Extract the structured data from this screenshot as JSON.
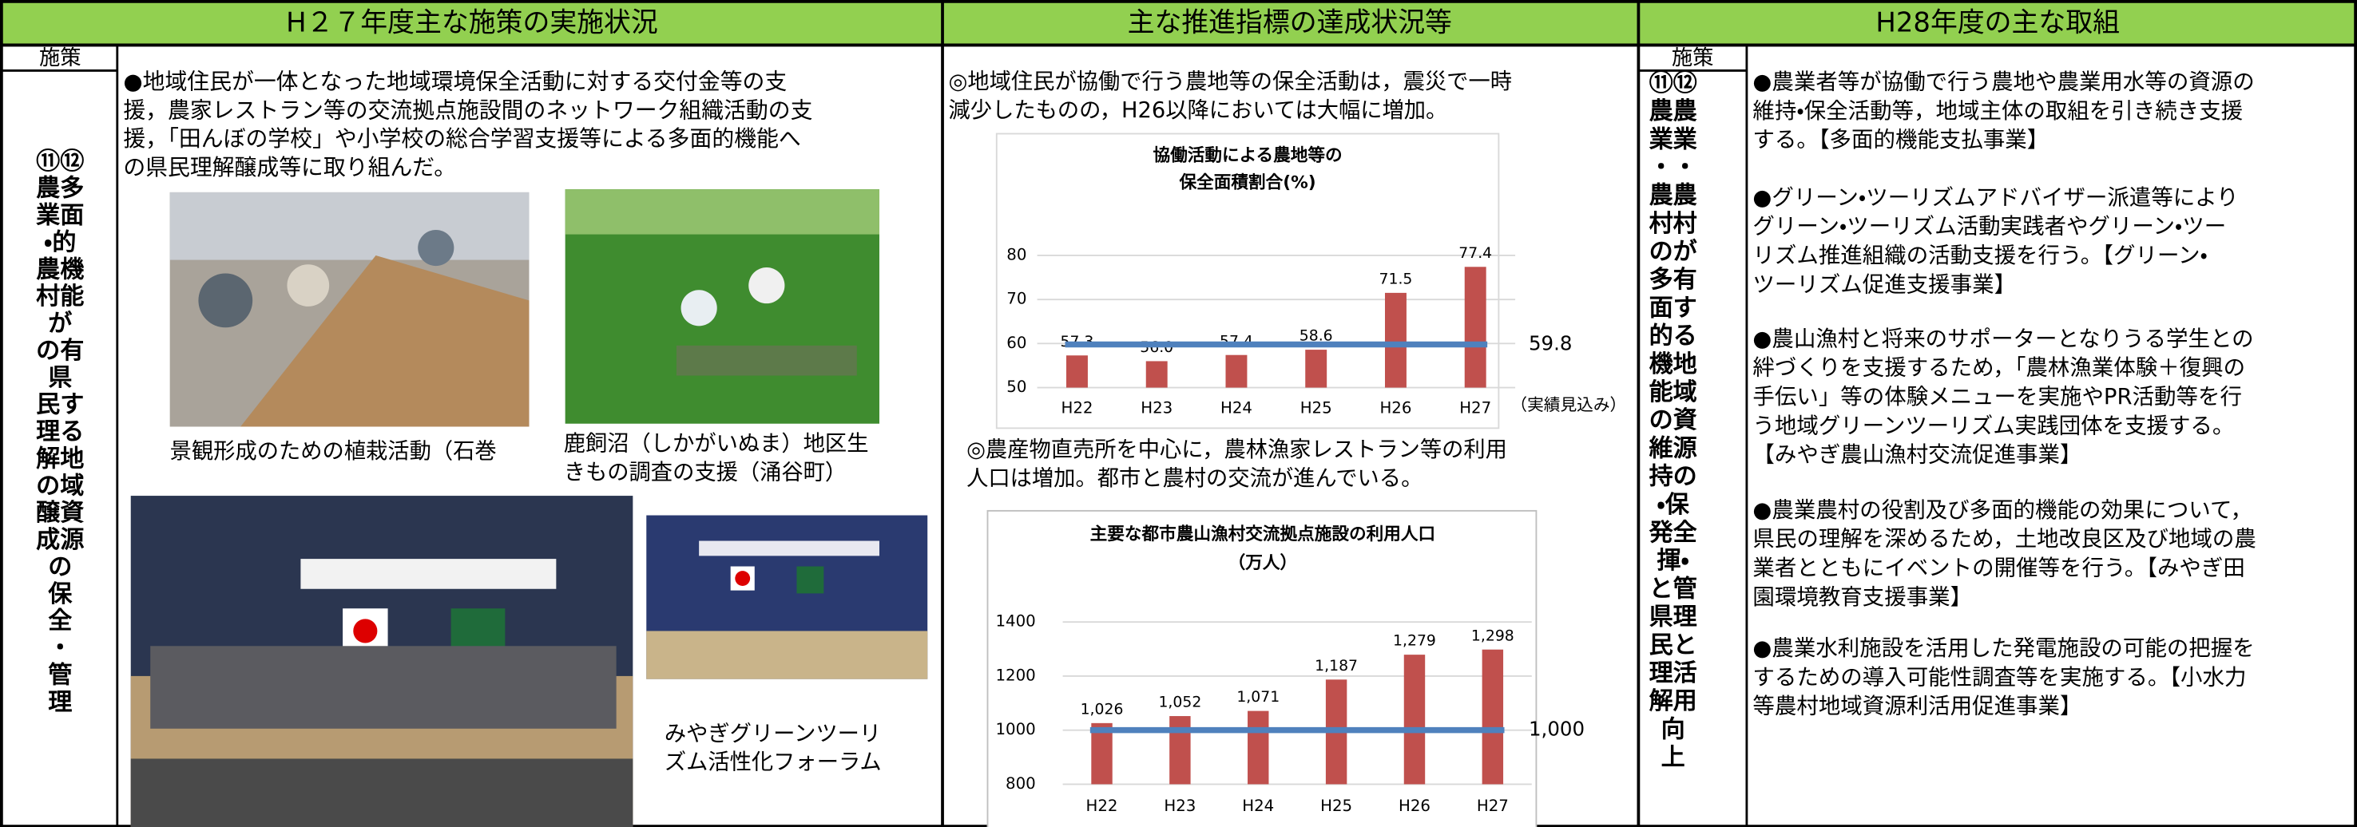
{
  "header": {
    "columns": [
      "H２７年度主な施策の実施状況",
      "主な推進指標の達成状況等",
      "H28年度の主な取組"
    ]
  },
  "left": {
    "policy_header": "施策",
    "policy_lines": [
      "⑪⑫",
      "農多",
      "業面",
      "・的",
      "農機",
      "村能",
      "が",
      "の有",
      "県",
      "民す",
      "理る",
      "解地",
      "の域",
      "醸資",
      "成源",
      "の",
      "保",
      "全",
      "・",
      "管",
      "理"
    ],
    "intro_lines": [
      "●地域住民が一体となった地域環境保全活動に対する交付金等の支",
      "援，農家レストラン等の交流拠点施設間のネットワーク組織活動の支",
      "援，「田んぼの学校」や小学校の総合学習支援等による多面的機能へ",
      "の県民理解醸成等に取り組んだ。"
    ],
    "captions": [
      [
        "景観形成のための植栽活動（石巻"
      ],
      [
        "鹿飼沼（しかがいぬま）地区生",
        "きもの調査の支援（涌谷町）"
      ],
      [
        "みやぎグリーンツーリ",
        "ズム活性化フォーラム"
      ]
    ]
  },
  "middle": {
    "text1": [
      "◎地域住民が協働で行う農地等の保全活動は，震災で一時",
      "減少したものの，H26以降においては大幅に増加。"
    ],
    "text2": [
      "◎農産物直売所を中心に，農林漁家レストラン等の利用",
      "人口は増加。都市と農村の交流が進んでいる。"
    ]
  },
  "right": {
    "policy_header": "施策",
    "policy_lines": [
      "⑪⑫",
      "農農",
      "業業",
      "・・",
      "農農",
      "村村",
      "のが",
      "多有",
      "面す",
      "的る",
      "機地",
      "能域",
      "の資",
      "維源",
      "持の",
      "・保",
      "発全",
      "揮・",
      "と管",
      "県理",
      "民と",
      "理活",
      "解用",
      "向",
      "上"
    ],
    "items": [
      [
        "●農業者等が協働で行う農地や農業用水等の資源の",
        "維持・保全活動等，地域主体の取組を引き続き支援",
        "する。【多面的機能支払事業】"
      ],
      [
        "●グリーン・ツーリズムアドバイザー派遣等により",
        "グリーン・ツーリズム活動実践者やグリーン・ツー",
        "リズム推進組織の活動支援を行う。【グリーン・",
        "ツーリズム促進支援事業】"
      ],
      [
        "●農山漁村と将来のサポーターとなりうる学生との",
        "絆づくりを支援するため，「農林漁業体験＋復興の",
        "手伝い」等の体験メニューを実施やPR活動等を行",
        "う地域グリーンツーリズム実践団体を支援する。",
        "【みやぎ農山漁村交流促進事業】"
      ],
      [
        "●農業農村の役割及び多面的機能の効果について，",
        "県民の理解を深めるため，土地改良区及び地域の農",
        "業者とともにイベントの開催等を行う。【みやぎ田",
        "園環境教育支援事業】"
      ],
      [
        "●農業水利施設を活用した発電施設の可能の把握を",
        "するための導入可能性調査等を実施する。【小水力",
        "等農村地域資源利活用促進事業】"
      ]
    ]
  },
  "chart_data": [
    {
      "type": "bar",
      "title": [
        "協働活動による農地等の",
        "保全面積割合(%)"
      ],
      "categories": [
        "H22",
        "H23",
        "H24",
        "H25",
        "H26",
        "H27"
      ],
      "values": [
        57.3,
        56.0,
        57.4,
        58.6,
        71.5,
        77.4
      ],
      "value_labels": [
        "57.3",
        "56.0",
        "57.4",
        "58.6",
        "71.5",
        "77.4"
      ],
      "color": "#c0504d",
      "target": 59.8,
      "target_color": "#4f81bd",
      "note": "（実績見込み）",
      "ylim": [
        50,
        80
      ],
      "yticks": [
        50,
        60,
        70,
        80
      ],
      "grid": true
    },
    {
      "type": "bar",
      "title": [
        "主要な都市農山漁村交流拠点施設の利用人口",
        "（万人）"
      ],
      "categories": [
        "H22",
        "H23",
        "H24",
        "H25",
        "H26",
        "H27"
      ],
      "values": [
        1026,
        1052,
        1071,
        1187,
        1279,
        1298
      ],
      "value_labels": [
        "1,026",
        "1,052",
        "1,071",
        "1,187",
        "1,279",
        "1,298"
      ],
      "color": "#c0504d",
      "target": {
        "value": 1000,
        "label": "1,000"
      },
      "target_color": "#4f81bd",
      "ylim": [
        800,
        1400
      ],
      "yticks": [
        800,
        1000,
        1200,
        1400
      ],
      "grid": true
    }
  ]
}
